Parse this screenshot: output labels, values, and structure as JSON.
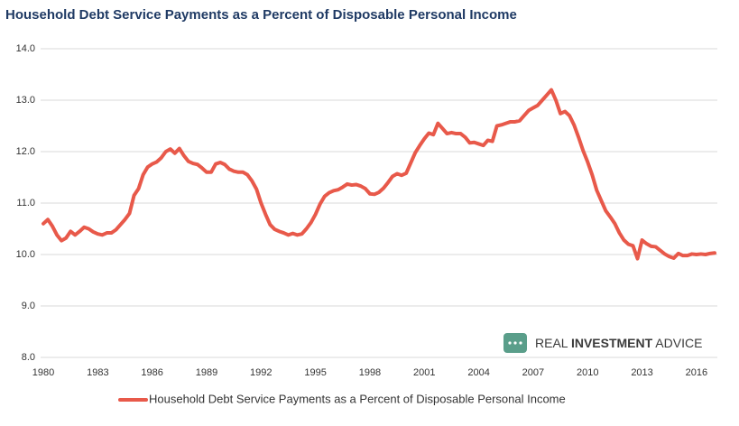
{
  "chart_data": {
    "type": "line",
    "title": "Household Debt Service Payments as a Percent of Disposable Personal Income",
    "watermark": {
      "brand": "REAL ",
      "brand_bold": "INVESTMENT",
      "brand_end": " ADVICE"
    },
    "x": [
      1980,
      1980.25,
      1980.5,
      1980.75,
      1981,
      1981.25,
      1981.5,
      1981.75,
      1982,
      1982.25,
      1982.5,
      1982.75,
      1983,
      1983.25,
      1983.5,
      1983.75,
      1984,
      1984.25,
      1984.5,
      1984.75,
      1985,
      1985.25,
      1985.5,
      1985.75,
      1986,
      1986.25,
      1986.5,
      1986.75,
      1987,
      1987.25,
      1987.5,
      1987.75,
      1988,
      1988.25,
      1988.5,
      1988.75,
      1989,
      1989.25,
      1989.5,
      1989.75,
      1990,
      1990.25,
      1990.5,
      1990.75,
      1991,
      1991.25,
      1991.5,
      1991.75,
      1992,
      1992.25,
      1992.5,
      1992.75,
      1993,
      1993.25,
      1993.5,
      1993.75,
      1994,
      1994.25,
      1994.5,
      1994.75,
      1995,
      1995.25,
      1995.5,
      1995.75,
      1996,
      1996.25,
      1996.5,
      1996.75,
      1997,
      1997.25,
      1997.5,
      1997.75,
      1998,
      1998.25,
      1998.5,
      1998.75,
      1999,
      1999.25,
      1999.5,
      1999.75,
      2000,
      2000.25,
      2000.5,
      2000.75,
      2001,
      2001.25,
      2001.5,
      2001.75,
      2002,
      2002.25,
      2002.5,
      2002.75,
      2003,
      2003.25,
      2003.5,
      2003.75,
      2004,
      2004.25,
      2004.5,
      2004.75,
      2005,
      2005.25,
      2005.5,
      2005.75,
      2006,
      2006.25,
      2006.5,
      2006.75,
      2007,
      2007.25,
      2007.5,
      2007.75,
      2008,
      2008.25,
      2008.5,
      2008.75,
      2009,
      2009.25,
      2009.5,
      2009.75,
      2010,
      2010.25,
      2010.5,
      2010.75,
      2011,
      2011.25,
      2011.5,
      2011.75,
      2012,
      2012.25,
      2012.5,
      2012.75,
      2013,
      2013.25,
      2013.5,
      2013.75,
      2014,
      2014.25,
      2014.5,
      2014.75,
      2015,
      2015.25,
      2015.5,
      2015.75,
      2016,
      2016.25,
      2016.5,
      2016.75,
      2017
    ],
    "series": [
      {
        "name": "Household Debt Service Payments as a Percent of Disposable Personal Income",
        "color": "#e8594a",
        "values": [
          10.6,
          10.68,
          10.55,
          10.38,
          10.27,
          10.32,
          10.45,
          10.38,
          10.45,
          10.53,
          10.5,
          10.44,
          10.4,
          10.38,
          10.42,
          10.42,
          10.48,
          10.58,
          10.68,
          10.8,
          11.15,
          11.28,
          11.55,
          11.7,
          11.76,
          11.8,
          11.88,
          12.0,
          12.05,
          11.97,
          12.06,
          11.92,
          11.81,
          11.77,
          11.75,
          11.68,
          11.6,
          11.6,
          11.76,
          11.79,
          11.75,
          11.66,
          11.62,
          11.6,
          11.6,
          11.55,
          11.43,
          11.27,
          11.0,
          10.78,
          10.58,
          10.49,
          10.45,
          10.42,
          10.38,
          10.41,
          10.38,
          10.4,
          10.5,
          10.62,
          10.78,
          10.98,
          11.13,
          11.2,
          11.24,
          11.26,
          11.31,
          11.37,
          11.35,
          11.36,
          11.33,
          11.28,
          11.18,
          11.17,
          11.21,
          11.29,
          11.4,
          11.52,
          11.57,
          11.54,
          11.58,
          11.78,
          11.98,
          12.12,
          12.25,
          12.36,
          12.33,
          12.55,
          12.45,
          12.35,
          12.37,
          12.35,
          12.35,
          12.28,
          12.17,
          12.18,
          12.15,
          12.12,
          12.22,
          12.2,
          12.5,
          12.52,
          12.55,
          12.58,
          12.58,
          12.6,
          12.7,
          12.8,
          12.85,
          12.9,
          13.0,
          13.1,
          13.2,
          13.0,
          12.74,
          12.78,
          12.7,
          12.52,
          12.28,
          12.02,
          11.8,
          11.55,
          11.25,
          11.05,
          10.85,
          10.73,
          10.6,
          10.42,
          10.28,
          10.2,
          10.17,
          9.92,
          10.28,
          10.21,
          10.16,
          10.15,
          10.08,
          10.01,
          9.96,
          9.93,
          10.02,
          9.98,
          9.98,
          10.01,
          10.0,
          10.01,
          10.0,
          10.02,
          10.03
        ]
      }
    ],
    "xlim": [
      1979.85,
      2017.15
    ],
    "xticks": [
      1980,
      1983,
      1986,
      1989,
      1992,
      1995,
      1998,
      2001,
      2004,
      2007,
      2010,
      2013,
      2016
    ],
    "ylim": [
      8,
      14
    ],
    "yticks": [
      {
        "value": 8,
        "label": "8.0"
      },
      {
        "value": 9,
        "label": "9.0"
      },
      {
        "value": 10,
        "label": "10.0"
      },
      {
        "value": 11,
        "label": "11.0"
      },
      {
        "value": 12,
        "label": "12.0"
      },
      {
        "value": 13,
        "label": "13.0"
      },
      {
        "value": 14,
        "label": "14.0"
      }
    ],
    "grid": true,
    "legend": "bottom"
  }
}
